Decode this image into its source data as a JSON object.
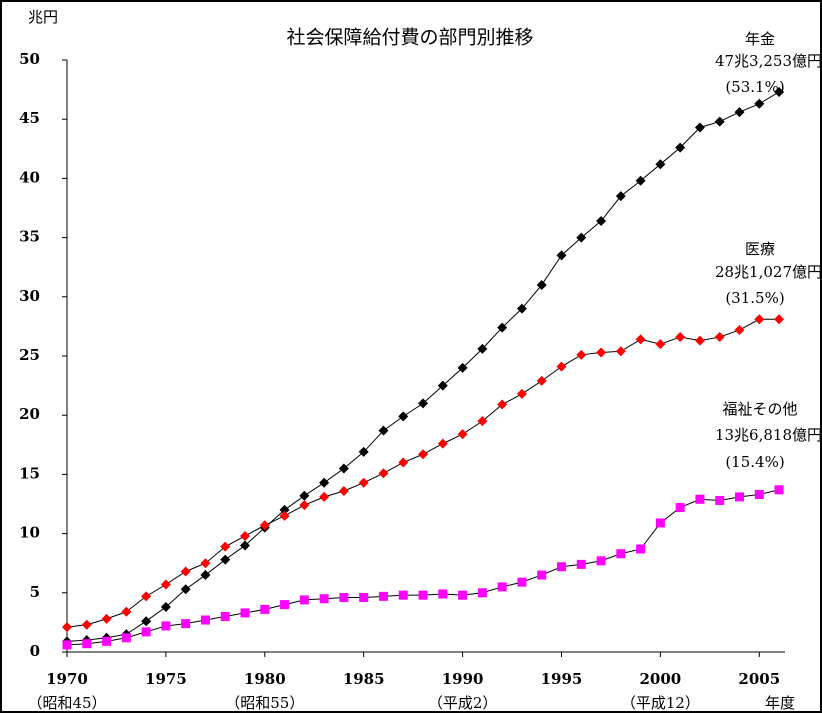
{
  "chart_data": {
    "type": "line",
    "title": "社会保障給付費の部門別推移",
    "y_unit": "兆円",
    "x_label": "年度",
    "x": [
      1970,
      1971,
      1972,
      1973,
      1974,
      1975,
      1976,
      1977,
      1978,
      1979,
      1980,
      1981,
      1982,
      1983,
      1984,
      1985,
      1986,
      1987,
      1988,
      1989,
      1990,
      1991,
      1992,
      1993,
      1994,
      1995,
      1996,
      1997,
      1998,
      1999,
      2000,
      2001,
      2002,
      2003,
      2004,
      2005,
      2006
    ],
    "xlim": [
      1970,
      2006.3
    ],
    "xticks": [
      1970,
      1975,
      1980,
      1985,
      1990,
      1995,
      2000,
      2005
    ],
    "era_labels": [
      {
        "x": 1970,
        "label": "（昭和45）"
      },
      {
        "x": 1980,
        "label": "（昭和55）"
      },
      {
        "x": 1990,
        "label": "（平成2）"
      },
      {
        "x": 2000,
        "label": "（平成12）"
      }
    ],
    "ylim": [
      0,
      50
    ],
    "yticks": [
      0,
      5,
      10,
      15,
      20,
      25,
      30,
      35,
      40,
      45,
      50
    ],
    "series": [
      {
        "name": "年金",
        "color": "#000000",
        "marker": "diamond",
        "amount_label": "47兆3,253億円",
        "share_label": "(53.1%)",
        "values": [
          0.9,
          1.0,
          1.2,
          1.5,
          2.6,
          3.8,
          5.3,
          6.5,
          7.8,
          9.0,
          10.5,
          12.0,
          13.2,
          14.3,
          15.5,
          16.9,
          18.7,
          19.9,
          21.0,
          22.5,
          24.0,
          25.6,
          27.4,
          29.0,
          31.0,
          33.5,
          35.0,
          36.4,
          38.5,
          39.8,
          41.2,
          42.6,
          44.3,
          44.8,
          45.6,
          46.3,
          47.3
        ]
      },
      {
        "name": "医療",
        "color": "#ff0000",
        "marker": "diamond",
        "amount_label": "28兆1,027億円",
        "share_label": "(31.5%)",
        "values": [
          2.1,
          2.3,
          2.8,
          3.4,
          4.7,
          5.7,
          6.8,
          7.5,
          8.9,
          9.8,
          10.7,
          11.5,
          12.4,
          13.1,
          13.6,
          14.3,
          15.1,
          16.0,
          16.7,
          17.6,
          18.4,
          19.5,
          20.9,
          21.8,
          22.9,
          24.1,
          25.1,
          25.3,
          25.4,
          26.4,
          26.0,
          26.6,
          26.3,
          26.6,
          27.2,
          28.1,
          28.1
        ]
      },
      {
        "name": "福祉その他",
        "color": "#ff00ff",
        "marker": "square",
        "amount_label": "13兆6,818億円",
        "share_label": "(15.4%)",
        "values": [
          0.6,
          0.7,
          0.9,
          1.2,
          1.7,
          2.2,
          2.4,
          2.7,
          3.0,
          3.3,
          3.6,
          4.0,
          4.4,
          4.5,
          4.6,
          4.6,
          4.7,
          4.8,
          4.8,
          4.9,
          4.8,
          5.0,
          5.5,
          5.9,
          6.5,
          7.2,
          7.4,
          7.7,
          8.3,
          8.7,
          10.9,
          12.2,
          12.9,
          12.8,
          13.1,
          13.3,
          13.7
        ]
      }
    ]
  }
}
